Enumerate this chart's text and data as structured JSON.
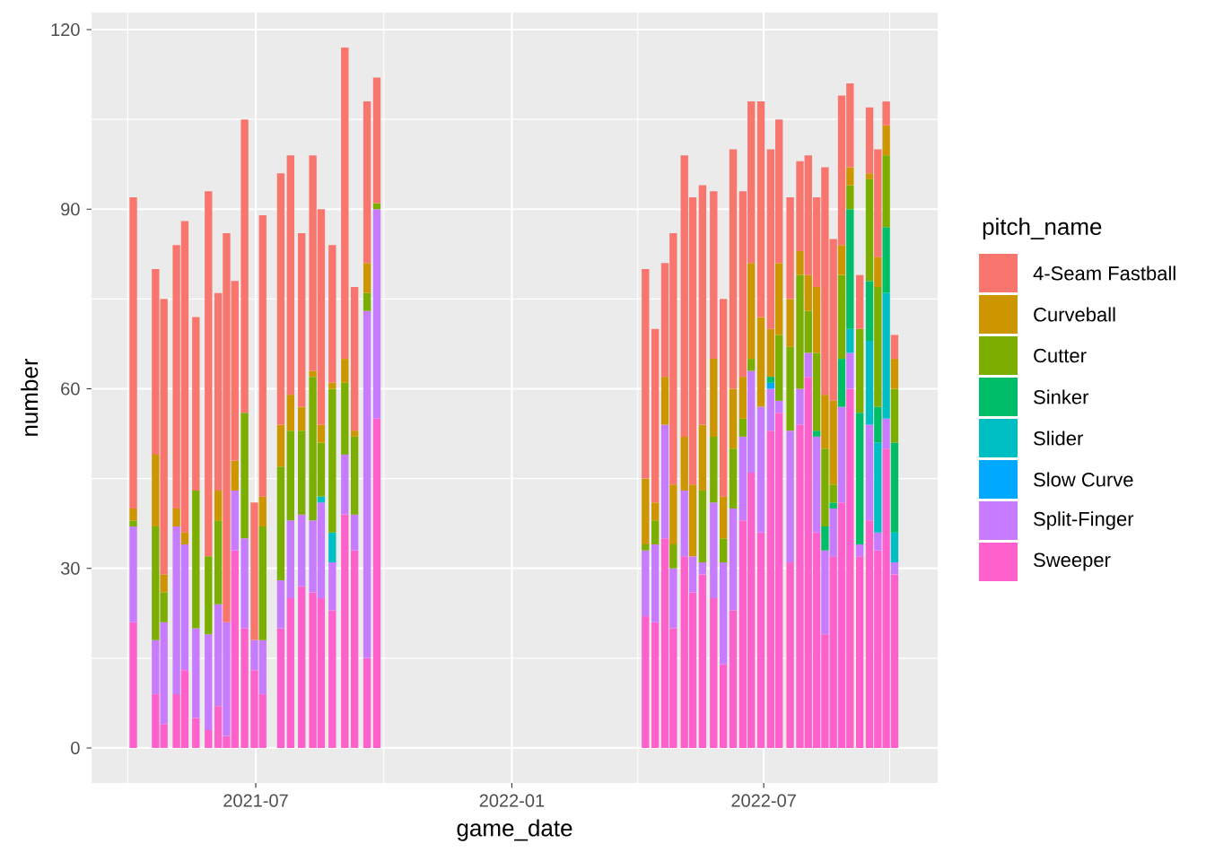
{
  "chart_data": {
    "type": "bar",
    "stacked": true,
    "xlabel": "game_date",
    "ylabel": "number",
    "legend_title": "pitch_name",
    "legend": "right",
    "grid": true,
    "xlim": [
      "2021-03-05",
      "2022-11-03"
    ],
    "xticks": [
      "2021-07",
      "2022-01",
      "2022-07"
    ],
    "ylim": [
      -5.85,
      122.85
    ],
    "yticks": [
      0,
      30,
      60,
      90,
      120
    ],
    "x": [
      "2021-04-04",
      "2021-04-20",
      "2021-04-26",
      "2021-05-05",
      "2021-05-11",
      "2021-05-19",
      "2021-05-28",
      "2021-06-04",
      "2021-06-10",
      "2021-06-16",
      "2021-06-23",
      "2021-06-30",
      "2021-07-06",
      "2021-07-19",
      "2021-07-26",
      "2021-08-03",
      "2021-08-11",
      "2021-08-17",
      "2021-08-25",
      "2021-09-03",
      "2021-09-10",
      "2021-09-19",
      "2021-09-26",
      "2022-04-07",
      "2022-04-14",
      "2022-04-21",
      "2022-04-27",
      "2022-05-05",
      "2022-05-11",
      "2022-05-18",
      "2022-05-26",
      "2022-06-02",
      "2022-06-09",
      "2022-06-16",
      "2022-06-22",
      "2022-06-29",
      "2022-07-06",
      "2022-07-12",
      "2022-07-20",
      "2022-07-27",
      "2022-08-02",
      "2022-08-08",
      "2022-08-14",
      "2022-08-20",
      "2022-08-26",
      "2022-09-01",
      "2022-09-08",
      "2022-09-15",
      "2022-09-21",
      "2022-09-27",
      "2022-10-03"
    ],
    "series": [
      {
        "name": "Sweeper",
        "color": "#ff61cc",
        "values": [
          21,
          9,
          4,
          9,
          13,
          5,
          3,
          7,
          2,
          33,
          20,
          13,
          9,
          20,
          25,
          27,
          26,
          25,
          23,
          39,
          33,
          15,
          55,
          22,
          21,
          35,
          20,
          32,
          26,
          29,
          25,
          14,
          23,
          38,
          46,
          36,
          53,
          56,
          31,
          54,
          62,
          36,
          19,
          32,
          41,
          60,
          32,
          38,
          33,
          50,
          29
        ]
      },
      {
        "name": "Split-Finger",
        "color": "#c77cff",
        "values": [
          16,
          9,
          17,
          28,
          21,
          15,
          16,
          17,
          19,
          10,
          15,
          5,
          9,
          8,
          13,
          12,
          12,
          16,
          8,
          10,
          6,
          58,
          35,
          11,
          13,
          19,
          10,
          11,
          6,
          2,
          16,
          17,
          17,
          14,
          17,
          21,
          7,
          2,
          22,
          6,
          4,
          16,
          14,
          8,
          16,
          6,
          2,
          16,
          3,
          5,
          2
        ]
      },
      {
        "name": "Slow Curve",
        "color": "#00a9ff",
        "values": [
          null,
          null,
          null,
          null,
          null,
          null,
          null,
          null,
          null,
          null,
          null,
          null,
          null,
          null,
          null,
          null,
          null,
          null,
          null,
          null,
          null,
          null,
          null,
          null,
          null,
          null,
          null,
          null,
          null,
          null,
          null,
          null,
          null,
          null,
          null,
          null,
          1,
          null,
          null,
          null,
          null,
          null,
          null,
          null,
          null,
          null,
          null,
          null,
          null,
          null,
          null
        ]
      },
      {
        "name": "Slider",
        "color": "#00bfc4",
        "values": [
          null,
          null,
          null,
          null,
          null,
          null,
          null,
          null,
          null,
          null,
          null,
          null,
          null,
          null,
          null,
          null,
          null,
          1,
          5,
          null,
          null,
          null,
          null,
          null,
          null,
          null,
          null,
          null,
          null,
          null,
          null,
          null,
          null,
          null,
          null,
          null,
          null,
          null,
          null,
          null,
          null,
          null,
          null,
          null,
          null,
          4,
          null,
          14,
          15,
          21,
          5
        ]
      },
      {
        "name": "Sinker",
        "color": "#00be67",
        "values": [
          null,
          null,
          null,
          null,
          null,
          null,
          null,
          null,
          null,
          null,
          null,
          null,
          null,
          null,
          null,
          null,
          null,
          null,
          null,
          null,
          null,
          null,
          null,
          null,
          null,
          null,
          null,
          null,
          null,
          null,
          null,
          null,
          null,
          null,
          null,
          null,
          1,
          null,
          null,
          null,
          null,
          1,
          4,
          1,
          8,
          20,
          22,
          10,
          6,
          11,
          15
        ]
      },
      {
        "name": "Cutter",
        "color": "#7cae00",
        "values": [
          1,
          19,
          5,
          null,
          null,
          23,
          13,
          14,
          null,
          null,
          21,
          null,
          19,
          19,
          15,
          14,
          24,
          9,
          24,
          12,
          13,
          3,
          1,
          1,
          4,
          null,
          4,
          null,
          null,
          12,
          11,
          4,
          10,
          3,
          2,
          null,
          null,
          11,
          14,
          19,
          7,
          13,
          13,
          3,
          14,
          4,
          14,
          17,
          20,
          12,
          9
        ]
      },
      {
        "name": "Curveball",
        "color": "#cd9600",
        "values": [
          2,
          12,
          3,
          3,
          2,
          null,
          null,
          5,
          null,
          5,
          null,
          null,
          5,
          7,
          6,
          4,
          1,
          3,
          1,
          4,
          1,
          5,
          null,
          11,
          3,
          8,
          10,
          9,
          12,
          11,
          13,
          7,
          10,
          7,
          16,
          15,
          8,
          12,
          8,
          4,
          6,
          11,
          9,
          14,
          5,
          3,
          null,
          1,
          5,
          5,
          5
        ]
      },
      {
        "name": "4-Seam Fastball",
        "color": "#f8766d",
        "values": [
          52,
          31,
          46,
          44,
          52,
          29,
          61,
          33,
          65,
          30,
          49,
          23,
          47,
          42,
          40,
          29,
          36,
          36,
          23,
          52,
          24,
          27,
          21,
          35,
          29,
          19,
          42,
          47,
          48,
          40,
          28,
          33,
          40,
          31,
          27,
          36,
          30,
          24,
          17,
          15,
          20,
          15,
          38,
          27,
          25,
          14,
          9,
          11,
          18,
          4,
          4
        ]
      }
    ]
  }
}
